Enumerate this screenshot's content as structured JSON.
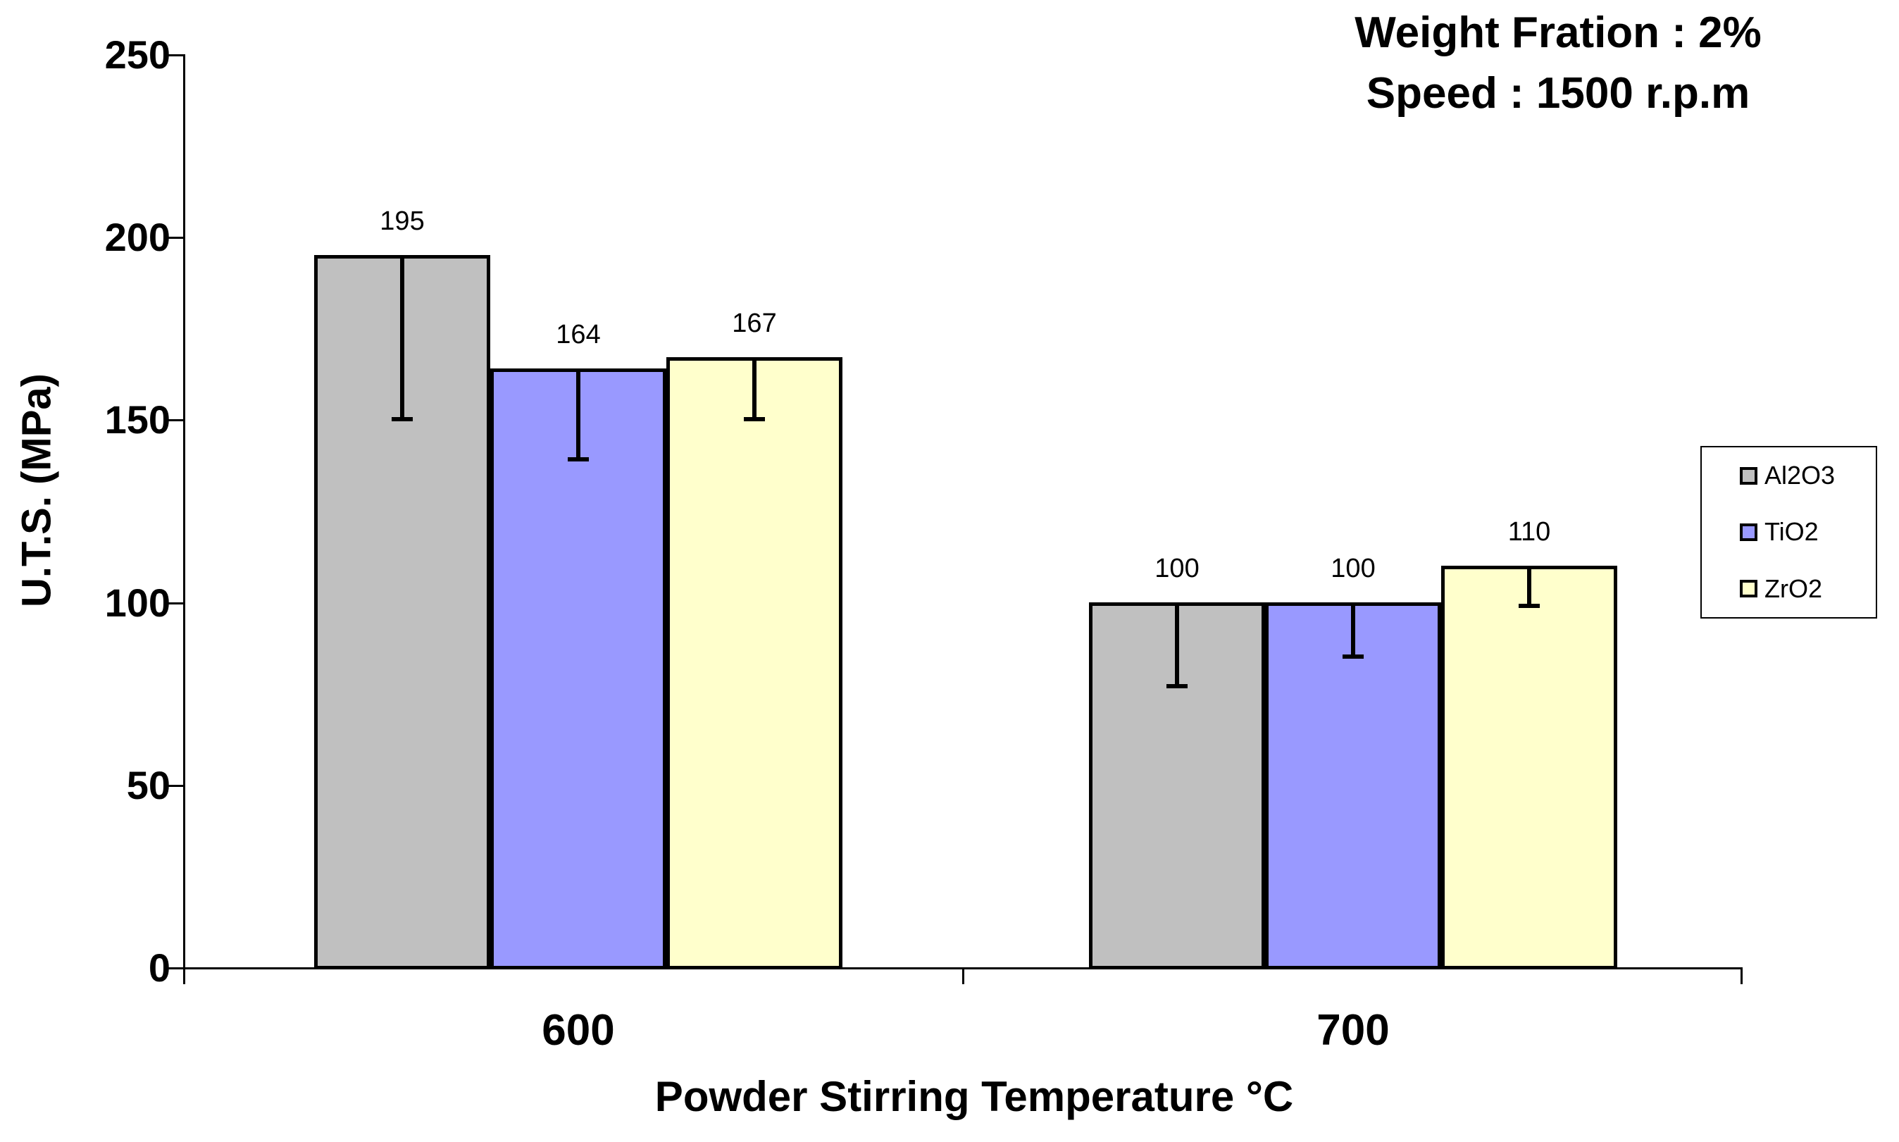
{
  "header": {
    "line1": "Weight Fration : 2%",
    "line2": "Speed : 1500 r.p.m"
  },
  "chart_data": {
    "type": "bar",
    "title": "",
    "categories": [
      "600",
      "700"
    ],
    "series": [
      {
        "name": "Al2O3",
        "color": "#C0C0C0",
        "values": [
          195,
          100
        ],
        "error_minus": [
          45,
          23
        ]
      },
      {
        "name": "TiO2",
        "color": "#9999FF",
        "values": [
          164,
          100
        ],
        "error_minus": [
          25,
          15
        ]
      },
      {
        "name": "ZrO2",
        "color": "#FFFFCC",
        "values": [
          167,
          110
        ],
        "error_minus": [
          17,
          11
        ]
      }
    ],
    "data_labels": [
      [
        195,
        164,
        167
      ],
      [
        100,
        100,
        110
      ]
    ],
    "xlabel": "Powder Stirring Temperature °C",
    "ylabel": "U.T.S. (MPa)",
    "ylim": [
      0,
      250
    ],
    "ytick_step": 50,
    "ytick_labels": [
      "0",
      "50",
      "100",
      "150",
      "200",
      "250"
    ],
    "grid": false,
    "legend_position": "right",
    "bar_outline_color": "#000000",
    "error_bar_direction": "minus"
  }
}
